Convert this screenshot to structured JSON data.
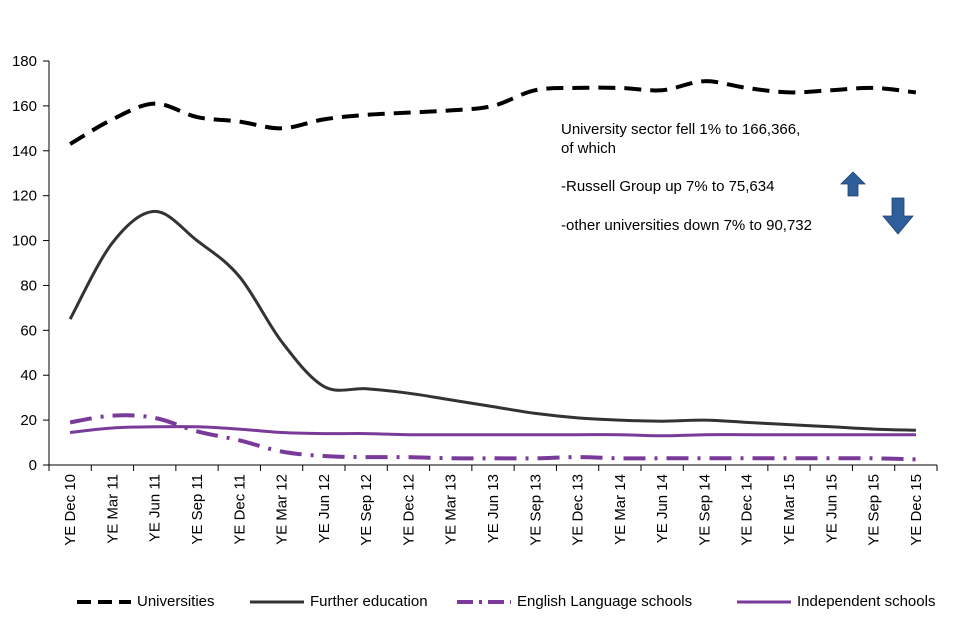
{
  "chart_data": {
    "type": "line",
    "title": "",
    "xlabel": "",
    "ylabel": "",
    "ylim": [
      0,
      180
    ],
    "yticks": [
      0,
      20,
      40,
      60,
      80,
      100,
      120,
      140,
      160,
      180
    ],
    "grid": false,
    "legend_position": "bottom",
    "categories": [
      "YE Dec 10",
      "YE Mar 11",
      "YE Jun 11",
      "YE Sep 11",
      "YE Dec 11",
      "YE Mar 12",
      "YE Jun 12",
      "YE Sep 12",
      "YE Dec 12",
      "YE Mar 13",
      "YE Jun 13",
      "YE Sep 13",
      "YE Dec 13",
      "YE Mar 14",
      "YE Jun 14",
      "YE Sep 14",
      "YE Dec 14",
      "YE Mar 15",
      "YE Jun 15",
      "YE Sep 15",
      "YE Dec 15"
    ],
    "series": [
      {
        "name": "Universities",
        "color": "#000000",
        "style": "dash",
        "values": [
          143,
          154,
          161,
          155,
          153,
          150,
          154,
          156,
          157,
          158,
          160,
          167,
          168,
          168,
          167,
          171,
          168,
          166,
          167,
          168,
          166
        ]
      },
      {
        "name": "Further education",
        "color": "#333333",
        "style": "solid",
        "values": [
          65,
          99,
          113,
          100,
          84,
          55,
          35,
          34,
          32,
          29,
          26,
          23,
          21,
          20,
          19.5,
          20,
          19,
          18,
          17,
          16,
          15.5
        ]
      },
      {
        "name": "English Language schools",
        "color": "#7a3a9a",
        "style": "dashdot",
        "values": [
          19,
          22,
          21,
          15,
          11,
          6,
          4,
          3.5,
          3.5,
          3,
          3,
          3,
          3.5,
          3,
          3,
          3,
          3,
          3,
          3,
          3,
          2.5
        ]
      },
      {
        "name": "Independent schools",
        "color": "#7a3a9a",
        "style": "solid",
        "values": [
          14.5,
          16.5,
          17,
          17,
          16,
          14.5,
          14,
          14,
          13.5,
          13.5,
          13.5,
          13.5,
          13.5,
          13.5,
          13,
          13.5,
          13.5,
          13.5,
          13.5,
          13.5,
          13.5
        ]
      }
    ],
    "annotations": {
      "line1": "University sector fell 1% to 166,366,",
      "line2": "of which",
      "line3": "-Russell Group up 7% to 75,634",
      "line4": "-other universities down 7% to 90,732",
      "up_arrow_color": "#2e5f9a",
      "down_arrow_color": "#2e5f9a"
    }
  }
}
